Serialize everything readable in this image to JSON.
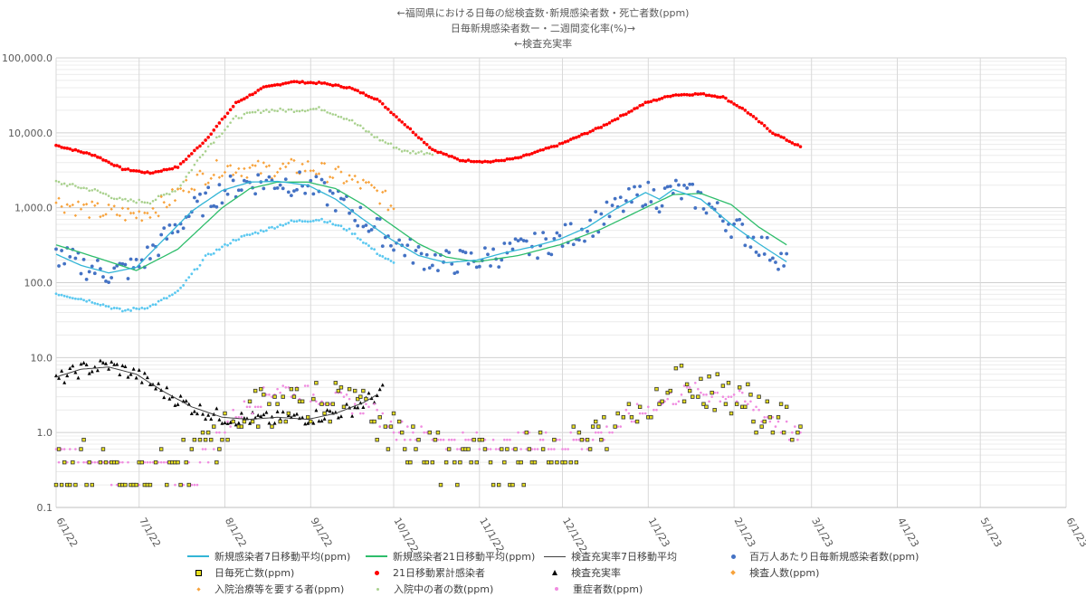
{
  "chart_data": {
    "type": "scatter",
    "title_lines": [
      "←福岡県における日毎の総検査数･新規感染者数・死亡者数(ppm)",
      "日毎新規感染者数ー・二週間変化率(%)→",
      "←検査充実率"
    ],
    "y_scale": "log",
    "ylim": [
      0.1,
      100000
    ],
    "y_ticks": [
      "100,000.0",
      "10,000.0",
      "1,000.0",
      "100.0",
      "10.0",
      "1.0",
      "0.1"
    ],
    "x_ticks": [
      "6/1/22",
      "7/1/22",
      "8/1/22",
      "9/1/22",
      "10/1/22",
      "11/1/22",
      "12/1/22",
      "1/1/23",
      "2/1/23",
      "3/1/23",
      "4/1/23",
      "5/1/23",
      "6/1/23"
    ],
    "xlim": [
      "2022-06-01",
      "2023-06-01"
    ],
    "grid": true,
    "legend_position": "bottom",
    "series": [
      {
        "name": "新規感染者7日移動平均(ppm)",
        "kind": "line",
        "color": "#33b5d6",
        "points": [
          [
            "2022-06-01",
            240
          ],
          [
            "2022-06-10",
            170
          ],
          [
            "2022-06-20",
            135
          ],
          [
            "2022-06-30",
            160
          ],
          [
            "2022-07-10",
            380
          ],
          [
            "2022-07-20",
            900
          ],
          [
            "2022-07-31",
            1700
          ],
          [
            "2022-08-10",
            2200
          ],
          [
            "2022-08-20",
            2250
          ],
          [
            "2022-08-31",
            2000
          ],
          [
            "2022-09-10",
            1300
          ],
          [
            "2022-09-20",
            700
          ],
          [
            "2022-09-30",
            380
          ],
          [
            "2022-10-10",
            230
          ],
          [
            "2022-10-20",
            185
          ],
          [
            "2022-10-31",
            200
          ],
          [
            "2022-11-10",
            250
          ],
          [
            "2022-11-20",
            300
          ],
          [
            "2022-11-30",
            380
          ],
          [
            "2022-12-10",
            550
          ],
          [
            "2022-12-20",
            950
          ],
          [
            "2022-12-31",
            1600
          ],
          [
            "2023-01-05",
            1300
          ],
          [
            "2023-01-10",
            1750
          ],
          [
            "2023-01-20",
            1300
          ],
          [
            "2023-01-31",
            600
          ],
          [
            "2023-02-10",
            330
          ],
          [
            "2023-02-20",
            190
          ]
        ]
      },
      {
        "name": "新規感染者21日移動平均(ppm)",
        "kind": "line",
        "color": "#2ebd6b",
        "points": [
          [
            "2022-06-01",
            320
          ],
          [
            "2022-06-15",
            220
          ],
          [
            "2022-06-30",
            145
          ],
          [
            "2022-07-15",
            280
          ],
          [
            "2022-07-31",
            1000
          ],
          [
            "2022-08-10",
            1800
          ],
          [
            "2022-08-20",
            2200
          ],
          [
            "2022-08-31",
            2200
          ],
          [
            "2022-09-10",
            1800
          ],
          [
            "2022-09-20",
            1100
          ],
          [
            "2022-09-30",
            600
          ],
          [
            "2022-10-10",
            330
          ],
          [
            "2022-10-20",
            220
          ],
          [
            "2022-10-31",
            190
          ],
          [
            "2022-11-15",
            230
          ],
          [
            "2022-11-30",
            320
          ],
          [
            "2022-12-15",
            520
          ],
          [
            "2022-12-31",
            1000
          ],
          [
            "2023-01-10",
            1500
          ],
          [
            "2023-01-20",
            1550
          ],
          [
            "2023-01-31",
            1100
          ],
          [
            "2023-02-10",
            550
          ],
          [
            "2023-02-20",
            320
          ]
        ]
      },
      {
        "name": "検査充実率7日移動平均",
        "kind": "line",
        "color": "#404040",
        "points": [
          [
            "2022-06-01",
            5.5
          ],
          [
            "2022-06-10",
            7
          ],
          [
            "2022-06-20",
            7.5
          ],
          [
            "2022-06-30",
            6
          ],
          [
            "2022-07-10",
            3.5
          ],
          [
            "2022-07-20",
            2.2
          ],
          [
            "2022-07-31",
            1.6
          ],
          [
            "2022-08-10",
            1.5
          ],
          [
            "2022-08-20",
            1.6
          ],
          [
            "2022-08-31",
            1.5
          ],
          [
            "2022-09-10",
            1.8
          ],
          [
            "2022-09-20",
            2.5
          ],
          [
            "2022-09-25",
            3.2
          ]
        ]
      },
      {
        "name": "百万人あたり日毎新規感染者数(ppm)",
        "kind": "dots",
        "color": "#4472c4",
        "points": "new_daily"
      },
      {
        "name": "日毎死亡数(ppm)",
        "kind": "squares",
        "color": "#e8e020",
        "points": "deaths"
      },
      {
        "name": "21日移動累計感染者",
        "kind": "dots",
        "color": "#ff0000",
        "points": "cum21"
      },
      {
        "name": "検査充実率",
        "kind": "triangles",
        "color": "#000000",
        "points": "test_ratio"
      },
      {
        "name": "検査人数(ppm)",
        "kind": "diamonds",
        "color": "#f7a23b",
        "points": "tests"
      },
      {
        "name": "入院治療等を要する者(ppm)",
        "kind": "dots",
        "color": "#a9d18e",
        "points": "in_treatment"
      },
      {
        "name": "入院中の者の数(ppm)",
        "kind": "dots",
        "color": "#5bc8f0",
        "points": "hospitalized"
      },
      {
        "name": "重症者数(ppm)",
        "kind": "dots",
        "color": "#f08ce0",
        "points": "severe"
      }
    ],
    "cum21_curve": [
      [
        "2022-06-01",
        6800
      ],
      [
        "2022-06-15",
        5000
      ],
      [
        "2022-06-25",
        3300
      ],
      [
        "2022-07-05",
        2900
      ],
      [
        "2022-07-15",
        3500
      ],
      [
        "2022-07-25",
        8000
      ],
      [
        "2022-08-05",
        25000
      ],
      [
        "2022-08-15",
        40000
      ],
      [
        "2022-08-25",
        48000
      ],
      [
        "2022-09-05",
        46000
      ],
      [
        "2022-09-15",
        40000
      ],
      [
        "2022-09-25",
        28000
      ],
      [
        "2022-10-05",
        13000
      ],
      [
        "2022-10-15",
        6000
      ],
      [
        "2022-10-25",
        4300
      ],
      [
        "2022-11-05",
        4100
      ],
      [
        "2022-11-15",
        4600
      ],
      [
        "2022-11-30",
        7000
      ],
      [
        "2022-12-15",
        12000
      ],
      [
        "2022-12-31",
        25000
      ],
      [
        "2023-01-10",
        32000
      ],
      [
        "2023-01-20",
        33000
      ],
      [
        "2023-01-28",
        30000
      ],
      [
        "2023-02-05",
        20000
      ],
      [
        "2023-02-15",
        10000
      ],
      [
        "2023-02-25",
        6500
      ]
    ],
    "in_treatment_curve": [
      [
        "2022-06-01",
        2200
      ],
      [
        "2022-06-15",
        1700
      ],
      [
        "2022-06-25",
        1250
      ],
      [
        "2022-07-05",
        1200
      ],
      [
        "2022-07-15",
        1800
      ],
      [
        "2022-07-25",
        6000
      ],
      [
        "2022-08-05",
        16000
      ],
      [
        "2022-08-15",
        20000
      ],
      [
        "2022-08-25",
        20000
      ],
      [
        "2022-09-05",
        21000
      ],
      [
        "2022-09-15",
        15000
      ],
      [
        "2022-09-25",
        8500
      ],
      [
        "2022-10-05",
        5600
      ],
      [
        "2022-10-15",
        5400
      ]
    ],
    "hospitalized_curve": [
      [
        "2022-06-01",
        72
      ],
      [
        "2022-06-15",
        55
      ],
      [
        "2022-06-25",
        42
      ],
      [
        "2022-07-05",
        48
      ],
      [
        "2022-07-15",
        75
      ],
      [
        "2022-07-25",
        220
      ],
      [
        "2022-08-05",
        380
      ],
      [
        "2022-08-15",
        500
      ],
      [
        "2022-08-25",
        650
      ],
      [
        "2022-09-05",
        700
      ],
      [
        "2022-09-15",
        500
      ],
      [
        "2022-09-25",
        250
      ],
      [
        "2022-10-01",
        180
      ]
    ],
    "tests_curve": [
      [
        "2022-06-01",
        1200
      ],
      [
        "2022-06-15",
        900
      ],
      [
        "2022-06-30",
        800
      ],
      [
        "2022-07-10",
        1100
      ],
      [
        "2022-07-20",
        2200
      ],
      [
        "2022-07-31",
        3500
      ],
      [
        "2022-08-15",
        3200
      ],
      [
        "2022-08-31",
        3500
      ],
      [
        "2022-09-15",
        2400
      ],
      [
        "2022-09-25",
        1600
      ],
      [
        "2022-10-01",
        1000
      ]
    ],
    "test_ratio_curve": [
      [
        "2022-06-01",
        5
      ],
      [
        "2022-06-10",
        7
      ],
      [
        "2022-06-20",
        8
      ],
      [
        "2022-06-30",
        6
      ],
      [
        "2022-07-10",
        3.5
      ],
      [
        "2022-07-20",
        2.2
      ],
      [
        "2022-07-31",
        1.6
      ],
      [
        "2022-08-15",
        1.5
      ],
      [
        "2022-08-31",
        1.6
      ],
      [
        "2022-09-15",
        2
      ],
      [
        "2022-09-27",
        3.5
      ]
    ],
    "severe_curve": [
      [
        "2022-06-01",
        0.5
      ],
      [
        "2022-06-30",
        0.3
      ],
      [
        "2022-07-20",
        0.3
      ],
      [
        "2022-08-05",
        1.8
      ],
      [
        "2022-08-20",
        4.0
      ],
      [
        "2022-09-05",
        3.0
      ],
      [
        "2022-09-20",
        2.2
      ],
      [
        "2022-10-01",
        1.2
      ],
      [
        "2022-10-20",
        0.8
      ],
      [
        "2022-11-15",
        0.7
      ],
      [
        "2022-12-10",
        0.8
      ],
      [
        "2022-12-31",
        2.0
      ],
      [
        "2023-01-15",
        3.5
      ],
      [
        "2023-01-31",
        3.2
      ],
      [
        "2023-02-15",
        1.5
      ],
      [
        "2023-02-25",
        0.8
      ]
    ],
    "deaths_curve": [
      [
        "2022-06-01",
        0.4
      ],
      [
        "2022-06-30",
        0.3
      ],
      [
        "2022-07-20",
        0.5
      ],
      [
        "2022-08-05",
        1.5
      ],
      [
        "2022-08-20",
        2.5
      ],
      [
        "2022-09-05",
        2.8
      ],
      [
        "2022-09-20",
        2.0
      ],
      [
        "2022-10-05",
        0.7
      ],
      [
        "2022-10-20",
        0.5
      ],
      [
        "2022-11-15",
        0.5
      ],
      [
        "2022-12-10",
        0.7
      ],
      [
        "2022-12-31",
        2.5
      ],
      [
        "2023-01-15",
        5.0
      ],
      [
        "2023-01-31",
        3.5
      ],
      [
        "2023-02-15",
        1.5
      ],
      [
        "2023-02-25",
        1.2
      ]
    ]
  },
  "legend": {
    "rows": [
      [
        "新規感染者7日移動平均(ppm)",
        "新規感染者21日移動平均(ppm)",
        "検査充実率7日移動平均",
        "百万人あたり日毎新規感染者数(ppm)"
      ],
      [
        "日毎死亡数(ppm)",
        "21日移動累計感染者",
        "検査充実率",
        "検査人数(ppm)"
      ],
      [
        "入院治療等を要する者(ppm)",
        "入院中の者の数(ppm)",
        "重症者数(ppm)"
      ]
    ]
  }
}
